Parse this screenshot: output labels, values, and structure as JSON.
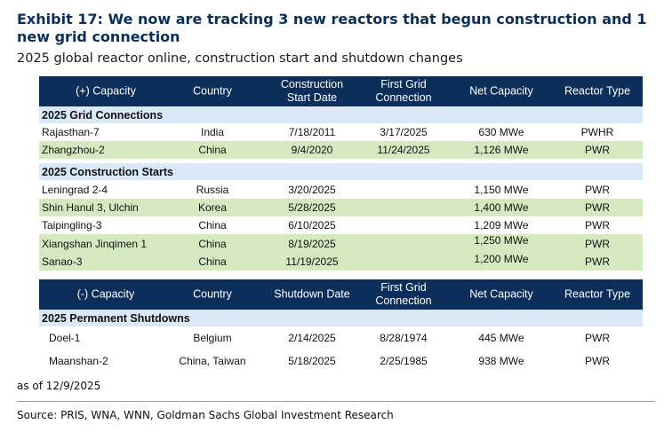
{
  "exhibit": {
    "title": "Exhibit 17: We now are tracking 3 new reactors that begun construction and 1 new grid connection",
    "subtitle": "2025 global reactor online, construction start and shutdown changes"
  },
  "header_online": {
    "col1": "(+) Capacity",
    "col2": "Country",
    "col3_line1": "Construction",
    "col3_line2": "Start Date",
    "col4_line1": "First Grid",
    "col4_line2": "Connection",
    "col5": "Net Capacity",
    "col6": "Reactor Type"
  },
  "grid_connections": {
    "heading": "2025 Grid Connections",
    "rows": [
      {
        "name": "Rajasthan-7",
        "country": "India",
        "start": "7/18/2011",
        "grid": "3/17/2025",
        "capacity": "630 MWe",
        "type": "PWHR"
      },
      {
        "name": "Zhangzhou-2",
        "country": "China",
        "start": "9/4/2020",
        "grid": "11/24/2025",
        "capacity": "1,126 MWe",
        "type": "PWR"
      }
    ]
  },
  "construction_starts": {
    "heading": "2025 Construction Starts",
    "rows": [
      {
        "name": "Leningrad 2-4",
        "country": "Russia",
        "start": "3/20/2025",
        "grid": "",
        "capacity": "1,150 MWe",
        "type": "PWR"
      },
      {
        "name": "Shin Hanul 3, Ulchin",
        "country": "Korea",
        "start": "5/28/2025",
        "grid": "",
        "capacity": "1,400 MWe",
        "type": "PWR"
      },
      {
        "name": "Taipingling-3",
        "country": "China",
        "start": "6/10/2025",
        "grid": "",
        "capacity": "1,209 MWe",
        "type": "PWR"
      },
      {
        "name": "Xiangshan Jinqimen 1",
        "country": "China",
        "start": "8/19/2025",
        "grid": "",
        "capacity": "1,250 MWe",
        "type": "PWR"
      },
      {
        "name": "Sanao-3",
        "country": "China",
        "start": "11/19/2025",
        "grid": "",
        "capacity": "1,200 MWe",
        "type": "PWR"
      }
    ]
  },
  "header_shutdown": {
    "col1": "(-) Capacity",
    "col2": "Country",
    "col3": "Shutdown Date",
    "col4_line1": "First Grid",
    "col4_line2": "Connection",
    "col5": "Net Capacity",
    "col6": "Reactor Type"
  },
  "shutdowns": {
    "heading": "2025 Permanent Shutdowns",
    "rows": [
      {
        "name": "Doel-1",
        "country": "Belgium",
        "start": "2/14/2025",
        "grid": "8/28/1974",
        "capacity": "445 MWe",
        "type": "PWR"
      },
      {
        "name": "Maanshan-2",
        "country": "China, Taiwan",
        "start": "5/18/2025",
        "grid": "2/25/1985",
        "capacity": "938 MWe",
        "type": "PWR"
      }
    ]
  },
  "footer": {
    "as_of": "as of 12/9/2025",
    "source": "Source: PRIS, WNA, WNN, Goldman Sachs Global Investment Research"
  },
  "colors": {
    "header_bg": "#0b2f5a",
    "section_bg": "#dbe8f7",
    "green_row": "#d6e8c0"
  }
}
